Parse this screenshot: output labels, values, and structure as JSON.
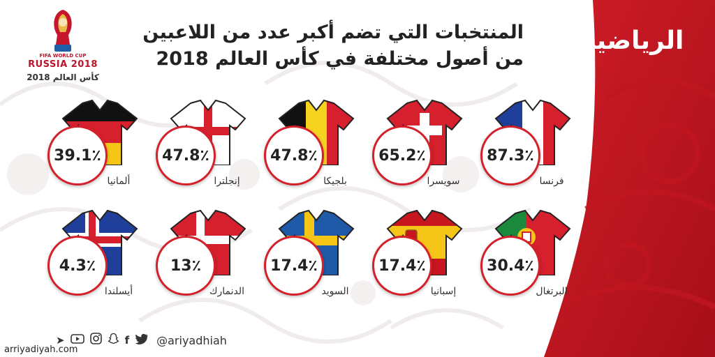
{
  "title_lines": [
    "المنتخبات التي تضم أكبر عدد من اللاعبين",
    "من أصول مختلفة في كأس العالم 2018"
  ],
  "brand": {
    "logo_text": "الرياضية",
    "accent": "#c0151f"
  },
  "wc_logo": {
    "small_text": "FIFA WORLD CUP",
    "event_text": "RUSSIA 2018",
    "arabic_caption": "كأس العالم 2018"
  },
  "teams": [
    {
      "name": "فرنسا",
      "percent": "87.3٪",
      "value": 87.3,
      "shirt": "france"
    },
    {
      "name": "سويسرا",
      "percent": "65.2٪",
      "value": 65.2,
      "shirt": "switzerland"
    },
    {
      "name": "بلجيكا",
      "percent": "47.8٪",
      "value": 47.8,
      "shirt": "belgium"
    },
    {
      "name": "إنجلترا",
      "percent": "47.8٪",
      "value": 47.8,
      "shirt": "england"
    },
    {
      "name": "ألمانيا",
      "percent": "39.1٪",
      "value": 39.1,
      "shirt": "germany"
    },
    {
      "name": "البرتغال",
      "percent": "30.4٪",
      "value": 30.4,
      "shirt": "portugal"
    },
    {
      "name": "إسبانيا",
      "percent": "17.4٪",
      "value": 17.4,
      "shirt": "spain"
    },
    {
      "name": "السويد",
      "percent": "17.4٪",
      "value": 17.4,
      "shirt": "sweden"
    },
    {
      "name": "الدنمارك",
      "percent": "13٪",
      "value": 13,
      "shirt": "denmark"
    },
    {
      "name": "أيسلندا",
      "percent": "4.3٪",
      "value": 4.3,
      "shirt": "iceland"
    }
  ],
  "social": {
    "icons": [
      "telegram-icon",
      "youtube-icon",
      "instagram-icon",
      "snapchat-icon",
      "facebook-icon",
      "twitter-icon"
    ],
    "handle": "@ariyadhiah"
  },
  "watermark": "arriyadiyah.com"
}
